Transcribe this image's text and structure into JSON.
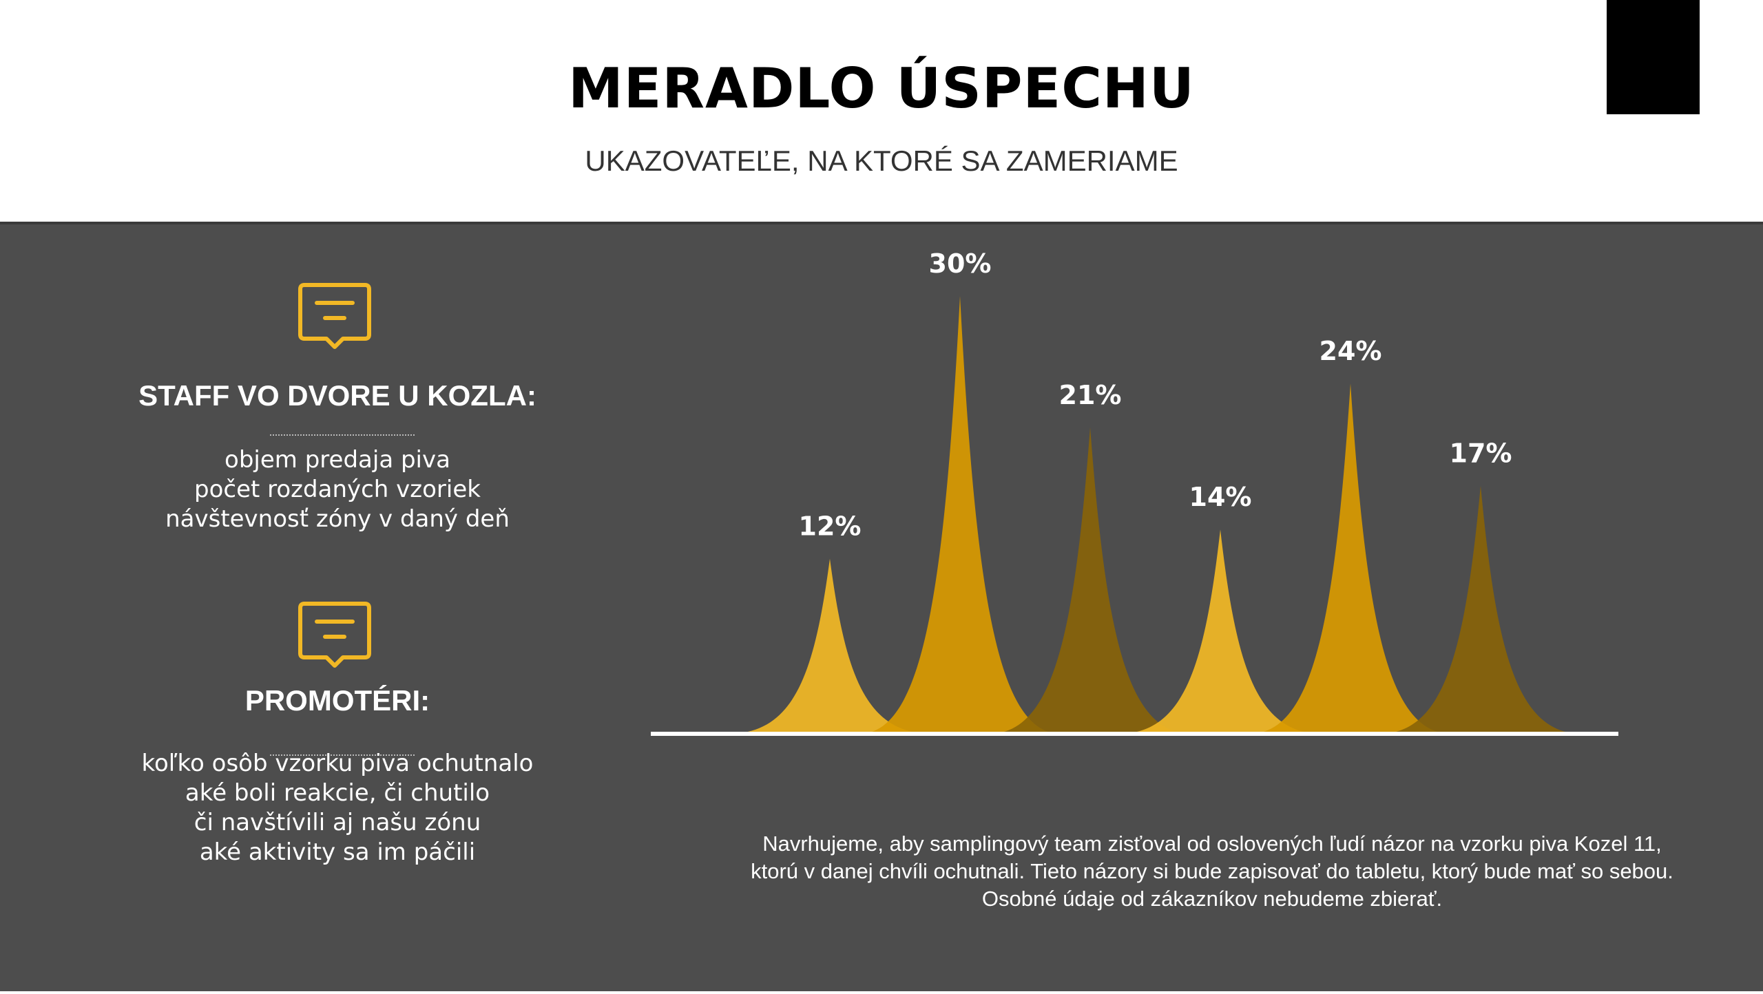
{
  "header": {
    "title": "MERADLO ÚSPECHU",
    "subtitle": "UKAZOVATEĽE, NA KTORÉ SA ZAMERIAME"
  },
  "sections": [
    {
      "icon": "message-icon",
      "title": "STAFF VO DVORE U KOZLA:",
      "items": [
        "objem predaja piva",
        "počet rozdaných vzoriek",
        "návštevnosť zóny v daný deň"
      ]
    },
    {
      "icon": "message-icon",
      "title": "PROMOTÉRI:",
      "items": [
        "koľko osôb vzorku piva ochutnalo",
        "aké boli reakcie, či chutilo",
        "či navštívili aj našu zónu",
        "aké aktivity sa im páčili"
      ]
    }
  ],
  "chart_data": {
    "type": "area",
    "categories": [
      "",
      "",
      "",
      "",
      "",
      ""
    ],
    "values": [
      12,
      30,
      21,
      14,
      24,
      17
    ],
    "data_labels": [
      "12%",
      "30%",
      "21%",
      "14%",
      "24%",
      "17%"
    ],
    "colors": [
      "#f2b825",
      "#d99a00",
      "#8a6408",
      "#f2b825",
      "#d99a00",
      "#8a6408"
    ],
    "grid": false,
    "xlabel": "",
    "ylabel": ""
  },
  "footer": {
    "lines": [
      "Navrhujeme, aby samplingový team zisťoval od oslovených ľudí názor na vzorku piva Kozel 11,",
      "ktorú v danej chvíli ochutnali. Tieto názory si bude zapisovať do tabletu, ktorý bude mať so sebou.",
      "Osobné údaje od zákazníkov nebudeme zbierať."
    ]
  }
}
